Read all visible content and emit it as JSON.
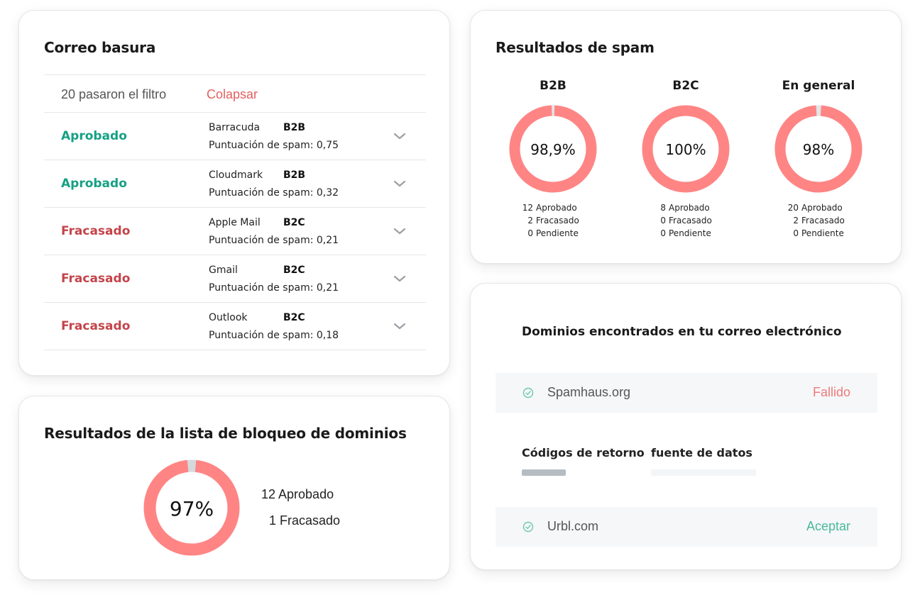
{
  "junk": {
    "title": "Correo basura",
    "summary": "20 pasaron el filtro",
    "collapse": "Colapsar",
    "rows": [
      {
        "status": "Aprobado",
        "outcome": "pass",
        "provider": "Barracuda",
        "type": "B2B",
        "score": "Puntuación de spam: 0,75"
      },
      {
        "status": "Aprobado",
        "outcome": "pass",
        "provider": "Cloudmark",
        "type": "B2B",
        "score": "Puntuación de spam: 0,32"
      },
      {
        "status": "Fracasado",
        "outcome": "fail",
        "provider": "Apple Mail",
        "type": "B2C",
        "score": "Puntuación de spam: 0,21"
      },
      {
        "status": "Fracasado",
        "outcome": "fail",
        "provider": "Gmail",
        "type": "B2C",
        "score": "Puntuación de spam: 0,21"
      },
      {
        "status": "Fracasado",
        "outcome": "fail",
        "provider": "Outlook",
        "type": "B2C",
        "score": "Puntuación de spam: 0,18"
      }
    ]
  },
  "blocklist": {
    "title": "Resultados de la lista de bloqueo de dominios",
    "percent": "97%",
    "fill": 0.97,
    "approved": "12 Aprobado",
    "failed": "1 Fracasado"
  },
  "spam": {
    "title": "Resultados de spam",
    "columns": [
      {
        "title": "B2B",
        "percent": "98,9%",
        "fill": 0.989,
        "stats": [
          {
            "num": "12",
            "label": "Aprobado"
          },
          {
            "num": "2",
            "label": "Fracasado"
          },
          {
            "num": "0",
            "label": "Pendiente"
          }
        ]
      },
      {
        "title": "B2C",
        "percent": "100%",
        "fill": 1.0,
        "stats": [
          {
            "num": "8",
            "label": "Aprobado"
          },
          {
            "num": "0",
            "label": "Fracasado"
          },
          {
            "num": "0",
            "label": "Pendiente"
          }
        ]
      },
      {
        "title": "En general",
        "percent": "98%",
        "fill": 0.98,
        "stats": [
          {
            "num": "20",
            "label": "Aprobado"
          },
          {
            "num": "2",
            "label": "Fracasado"
          },
          {
            "num": "0",
            "label": "Pendiente"
          }
        ]
      }
    ]
  },
  "domains": {
    "title": "Dominios encontrados en tu correo electrónico",
    "items": [
      {
        "name": "Spamhaus.org",
        "status": "Fallido",
        "outcome": "fail"
      },
      {
        "name": "Urbl.com",
        "status": "Aceptar",
        "outcome": "ok"
      }
    ],
    "codes_label": "Códigos de retorno",
    "source_label": "fuente de datos"
  },
  "colors": {
    "donut": "#ff8585",
    "donut_remainder": "#d5d9dc",
    "pass": "#16a085",
    "fail": "#c4444a",
    "domain_fail": "#ef7a7a",
    "domain_ok": "#49b99a"
  },
  "icons": {
    "chevron": "chevron-down-icon",
    "check": "check-circle-icon"
  }
}
